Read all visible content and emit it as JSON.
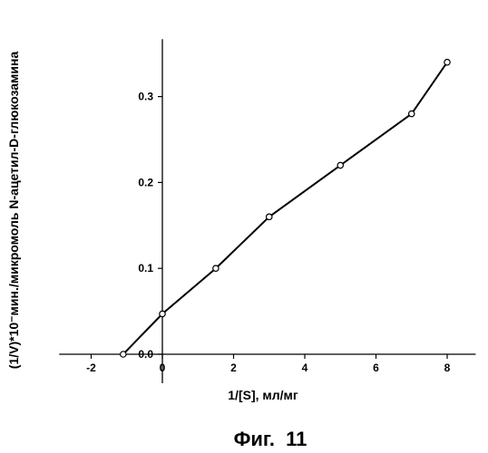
{
  "chart_data": {
    "type": "line",
    "x": [
      -1.1,
      0,
      1.5,
      3,
      5,
      7,
      8
    ],
    "y": [
      0.0,
      0.047,
      0.1,
      0.16,
      0.22,
      0.28,
      0.34
    ],
    "xlim": [
      -3,
      8.8
    ],
    "ylim": [
      0,
      0.37
    ],
    "x_ticks": [
      -2,
      0,
      2,
      4,
      6,
      8
    ],
    "x_tick_labels": [
      "-2",
      "0",
      "2",
      "4",
      "6",
      "8"
    ],
    "y_ticks": [
      0.0,
      0.1,
      0.2,
      0.3
    ],
    "y_tick_labels": [
      "0.0",
      "0.1",
      "0.2",
      "0.3"
    ],
    "xlabel": "1/[S], мл/мг",
    "ylabel": "(1/V)*10⁻мин./микромоль N-ацетил-D-глюкозамина",
    "grid": false,
    "marker": "open-circle",
    "color": "#000000"
  },
  "caption": "Фиг.  11"
}
